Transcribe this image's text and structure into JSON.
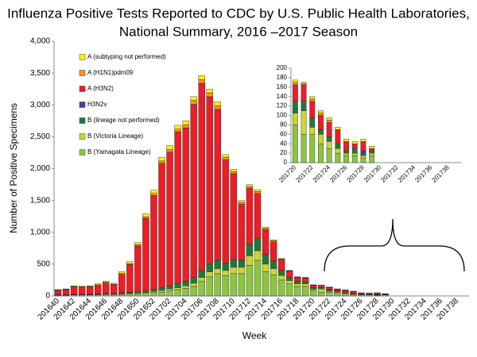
{
  "chart_data": [
    {
      "type": "stacked-bar",
      "title": [
        "Influenza Positive Tests Reported to CDC by U.S. Public Health Laboratories,",
        "National Summary, 2016 –2017 Season"
      ],
      "x_label": "Week",
      "y_label": "Number of Positive Specimens",
      "categories": [
        "201640",
        null,
        "201642",
        null,
        "201644",
        null,
        "201646",
        null,
        "201648",
        null,
        "201650",
        null,
        "201652",
        null,
        "201702",
        null,
        "201704",
        null,
        "201706",
        null,
        "201708",
        null,
        "201710",
        null,
        "201712",
        null,
        "201714",
        null,
        "201716",
        null,
        "201718",
        null,
        "201720",
        null,
        "201722",
        null,
        "201724",
        null,
        "201726",
        null,
        "201728",
        null,
        "201730",
        null,
        "201732",
        null,
        "201734",
        null,
        "201736",
        null,
        "201738",
        null
      ],
      "ylim": [
        0,
        4000
      ],
      "yticks": [
        0,
        500,
        {
          "value": 1000,
          "label": "1,000"
        },
        {
          "value": 1500,
          "label": "1,500"
        },
        {
          "value": 2000,
          "label": "2,000"
        },
        {
          "value": 2500,
          "label": "2,500"
        },
        {
          "value": 3000,
          "label": "3,000"
        },
        {
          "value": 3500,
          "label": "3,500"
        },
        {
          "value": 4000,
          "label": "4,000"
        }
      ],
      "legend": "top-left",
      "series": [
        {
          "name": "B (Yamagata Lineage)",
          "color": "#8cc63f",
          "values": [
            10,
            10,
            15,
            15,
            15,
            20,
            20,
            20,
            25,
            30,
            30,
            40,
            50,
            60,
            80,
            100,
            120,
            150,
            230,
            300,
            350,
            320,
            350,
            350,
            480,
            560,
            380,
            330,
            250,
            190,
            150,
            150,
            80,
            60,
            60,
            40,
            30,
            20,
            15,
            15,
            10,
            15,
            0,
            0,
            0,
            0,
            0,
            0,
            0,
            0,
            0,
            0
          ]
        },
        {
          "name": "B (Victoria Lineage)",
          "color": "#c9d72f",
          "values": [
            5,
            5,
            5,
            5,
            5,
            5,
            10,
            10,
            10,
            10,
            15,
            15,
            20,
            25,
            30,
            30,
            40,
            50,
            60,
            80,
            80,
            80,
            100,
            100,
            150,
            150,
            120,
            100,
            70,
            50,
            40,
            40,
            25,
            50,
            15,
            20,
            15,
            10,
            5,
            5,
            5,
            5,
            0,
            0,
            0,
            0,
            0,
            0,
            0,
            0,
            0,
            0
          ]
        },
        {
          "name": "B (lineage not performed)",
          "color": "#1f7a3a",
          "values": [
            5,
            5,
            5,
            5,
            10,
            10,
            10,
            10,
            15,
            15,
            20,
            25,
            30,
            40,
            50,
            60,
            70,
            90,
            110,
            120,
            130,
            110,
            120,
            110,
            180,
            190,
            150,
            120,
            80,
            50,
            40,
            30,
            25,
            20,
            20,
            10,
            10,
            10,
            5,
            10,
            5,
            5,
            0,
            0,
            0,
            0,
            0,
            0,
            0,
            0,
            0,
            0
          ]
        },
        {
          "name": "H3N2v",
          "color": "#4b3aa8",
          "values": [
            0,
            0,
            0,
            0,
            0,
            0,
            0,
            0,
            0,
            0,
            0,
            0,
            0,
            0,
            0,
            0,
            0,
            0,
            0,
            0,
            0,
            0,
            0,
            0,
            0,
            0,
            0,
            0,
            0,
            0,
            0,
            0,
            0,
            0,
            0,
            0,
            0,
            0,
            0,
            0,
            5,
            0,
            0,
            0,
            0,
            0,
            0,
            0,
            0,
            0,
            0,
            0
          ]
        },
        {
          "name": "A (H3N2)",
          "color": "#ee1c25",
          "values": [
            65,
            75,
            115,
            110,
            110,
            130,
            165,
            135,
            290,
            440,
            720,
            1140,
            1480,
            1960,
            2100,
            2390,
            2410,
            2720,
            2940,
            2630,
            2370,
            1630,
            1350,
            880,
            880,
            710,
            390,
            300,
            170,
            100,
            60,
            60,
            35,
            35,
            35,
            30,
            30,
            30,
            20,
            10,
            20,
            5,
            0,
            0,
            0,
            0,
            0,
            0,
            0,
            0,
            0,
            0
          ]
        },
        {
          "name": "A (H1N1)pdm09",
          "color": "#f7941d",
          "values": [
            10,
            10,
            10,
            10,
            10,
            10,
            10,
            10,
            15,
            15,
            20,
            25,
            30,
            35,
            40,
            40,
            50,
            60,
            60,
            60,
            60,
            40,
            35,
            30,
            30,
            30,
            20,
            15,
            10,
            5,
            5,
            5,
            5,
            5,
            5,
            5,
            5,
            0,
            0,
            0,
            0,
            0,
            0,
            0,
            0,
            0,
            0,
            0,
            0,
            0,
            0,
            0
          ]
        },
        {
          "name": "A (subtyping not performed)",
          "color": "#fff200",
          "values": [
            5,
            5,
            10,
            10,
            10,
            15,
            15,
            15,
            25,
            30,
            35,
            45,
            50,
            60,
            60,
            60,
            60,
            60,
            60,
            60,
            60,
            40,
            35,
            30,
            30,
            30,
            20,
            15,
            10,
            5,
            5,
            5,
            5,
            0,
            5,
            5,
            5,
            5,
            5,
            5,
            5,
            5,
            0,
            0,
            0,
            0,
            0,
            0,
            0,
            0,
            0,
            0
          ]
        }
      ]
    },
    {
      "type": "stacked-bar",
      "categories": [
        "201720",
        null,
        "201722",
        null,
        "201724",
        null,
        "201726",
        null,
        "201728",
        null,
        "201730",
        null,
        "201732",
        null,
        "201734",
        null,
        "201736",
        null,
        "201738",
        null
      ],
      "ylim": [
        0,
        200
      ],
      "yticks": [
        0,
        20,
        40,
        60,
        80,
        100,
        120,
        140,
        160,
        180,
        200
      ],
      "series": [
        {
          "color": "#8cc63f",
          "values": [
            80,
            60,
            60,
            40,
            30,
            20,
            15,
            15,
            10,
            15,
            0,
            0,
            0,
            0,
            0,
            0,
            0,
            0,
            0,
            0
          ]
        },
        {
          "color": "#c9d72f",
          "values": [
            25,
            50,
            15,
            20,
            15,
            10,
            5,
            5,
            5,
            5,
            0,
            0,
            0,
            0,
            0,
            0,
            0,
            0,
            0,
            0
          ]
        },
        {
          "color": "#1f7a3a",
          "values": [
            25,
            20,
            20,
            10,
            10,
            10,
            5,
            10,
            5,
            5,
            0,
            0,
            0,
            0,
            0,
            0,
            0,
            0,
            0,
            0
          ]
        },
        {
          "color": "#4b3aa8",
          "values": [
            0,
            0,
            0,
            0,
            0,
            0,
            0,
            0,
            5,
            0,
            0,
            0,
            0,
            0,
            0,
            0,
            0,
            0,
            0,
            0
          ]
        },
        {
          "color": "#ee1c25",
          "values": [
            35,
            35,
            35,
            30,
            30,
            30,
            20,
            10,
            20,
            5,
            0,
            0,
            0,
            0,
            0,
            0,
            0,
            0,
            0,
            0
          ]
        },
        {
          "color": "#f7941d",
          "values": [
            5,
            5,
            5,
            5,
            5,
            0,
            0,
            0,
            0,
            0,
            0,
            0,
            0,
            0,
            0,
            0,
            0,
            0,
            0,
            0
          ]
        },
        {
          "color": "#fff200",
          "values": [
            5,
            0,
            5,
            5,
            5,
            5,
            5,
            5,
            5,
            5,
            0,
            0,
            0,
            0,
            0,
            0,
            0,
            0,
            0,
            0
          ]
        }
      ]
    }
  ]
}
